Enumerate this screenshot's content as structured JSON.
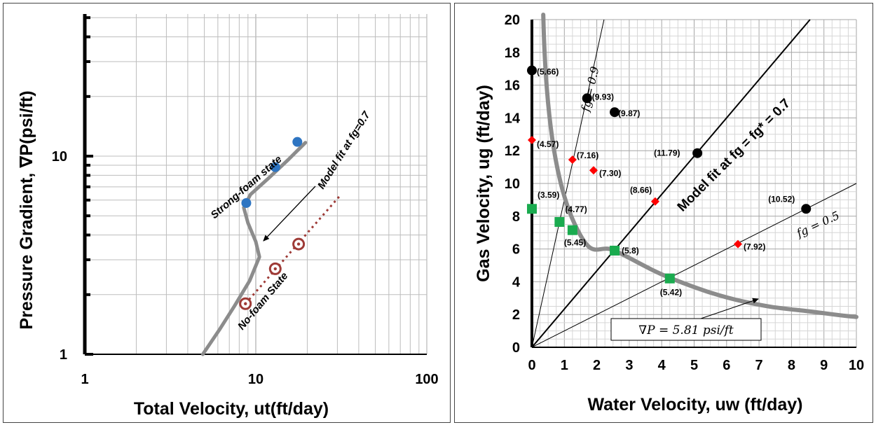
{
  "chart_data": [
    {
      "type": "line",
      "title": "",
      "xlabel": "Total Velocity, ut(ft/day)",
      "ylabel": "Pressure Gradient, ∇P(psi/ft)",
      "xscale": "log",
      "yscale": "log",
      "xlim": [
        1,
        100
      ],
      "ylim": [
        1,
        50
      ],
      "x_ticks": [
        "1",
        "10",
        "100"
      ],
      "y_ticks": [
        "1",
        "10"
      ],
      "grid": true,
      "model_curve": {
        "x": [
          4.9,
          6.2,
          7.5,
          9.2,
          10.5,
          10.0,
          9.0,
          8.5,
          9.3,
          12.0,
          15.5,
          19.5
        ],
        "y": [
          1.0,
          1.35,
          1.75,
          2.35,
          3.1,
          3.7,
          4.6,
          5.5,
          6.4,
          7.8,
          9.6,
          11.7
        ]
      },
      "strong_foam_points": {
        "x": [
          8.8,
          13.0,
          17.5
        ],
        "y": [
          5.8,
          8.8,
          11.8
        ]
      },
      "no_foam_points": {
        "x": [
          8.7,
          13.0,
          17.8
        ],
        "y": [
          1.8,
          2.7,
          3.6
        ]
      },
      "no_foam_trend": {
        "x": [
          8.7,
          31.0
        ],
        "y": [
          1.8,
          6.3
        ]
      },
      "annotations": [
        {
          "id": "strong",
          "text": "Strong-foam state"
        },
        {
          "id": "nofoam",
          "text": "No-foam State"
        },
        {
          "id": "model",
          "text": "Model fit at fg=0.7"
        }
      ],
      "colors": {
        "curve": "#8c8c8c",
        "strong": "#2e75c2",
        "nofoam": "#9e3a36"
      }
    },
    {
      "type": "scatter",
      "title": "",
      "xlabel": "Water Velocity, uw (ft/day)",
      "ylabel": "Gas Velocity, ug (ft/day)",
      "xlim": [
        0,
        10
      ],
      "ylim": [
        0,
        20
      ],
      "x_ticks": [
        "0",
        "1",
        "2",
        "3",
        "4",
        "5",
        "6",
        "7",
        "8",
        "9",
        "10"
      ],
      "y_ticks": [
        "0",
        "2",
        "4",
        "6",
        "8",
        "10",
        "12",
        "14",
        "16",
        "18",
        "20"
      ],
      "grid": true,
      "black_points": [
        {
          "x": 0.0,
          "y": 16.9,
          "label": "(5.66)"
        },
        {
          "x": 1.7,
          "y": 15.2,
          "label": "(9.93)"
        },
        {
          "x": 2.55,
          "y": 14.35,
          "label": "(9.87)"
        },
        {
          "x": 5.1,
          "y": 11.85,
          "label": "(11.79)"
        },
        {
          "x": 8.45,
          "y": 8.45,
          "label": "(10.52)"
        }
      ],
      "red_points": [
        {
          "x": 0.0,
          "y": 12.65,
          "label": "(4.57)"
        },
        {
          "x": 1.25,
          "y": 11.45,
          "label": "(7.16)"
        },
        {
          "x": 1.9,
          "y": 10.8,
          "label": "(7.30)"
        },
        {
          "x": 3.8,
          "y": 8.9,
          "label": "(8.66)"
        },
        {
          "x": 6.35,
          "y": 6.3,
          "label": "(7.92)"
        }
      ],
      "green_points": [
        {
          "x": 0.0,
          "y": 8.45,
          "label": "(3.59)"
        },
        {
          "x": 0.85,
          "y": 7.65,
          "label": "(4.77)"
        },
        {
          "x": 1.25,
          "y": 7.15,
          "label": "(5.45)"
        },
        {
          "x": 2.55,
          "y": 5.9,
          "label": "(5.8)"
        },
        {
          "x": 4.25,
          "y": 4.2,
          "label": "(5.42)"
        }
      ],
      "fg_lines": [
        {
          "fg": 0.9,
          "label": "fg = 0.9"
        },
        {
          "fg": 0.7,
          "label": "Model fit at fg = fg* = 0.7"
        },
        {
          "fg": 0.5,
          "label": "fg = 0.5"
        }
      ],
      "contour": {
        "label": "∇P = 5.81 psi/ft"
      },
      "colors": {
        "black": "#000000",
        "red": "#ff0000",
        "green": "#1aab4f",
        "contour": "#8c8c8c"
      }
    }
  ]
}
